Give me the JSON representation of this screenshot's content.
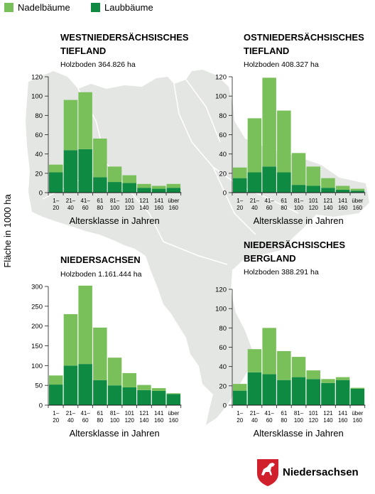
{
  "colors": {
    "nadel": "#79c05a",
    "laub": "#0f8a43",
    "map": "#e4e6e4",
    "map_border": "#ffffff",
    "axis": "#1a1a1a",
    "logo_red": "#d0202c"
  },
  "legend": [
    {
      "label": "Nadelbäume",
      "color": "#79c05a"
    },
    {
      "label": "Laubbäume",
      "color": "#0f8a43"
    }
  ],
  "y_axis_label": "Fläche in 1000 ha",
  "logo_text": "Niedersachsen",
  "chart_data": [
    {
      "type": "bar",
      "stacked": true,
      "title": "WESTNIEDERSÄCHSISCHES TIEFLAND",
      "subtitle": "Holzboden 364.826 ha",
      "xlabel": "Altersklasse in Jahren",
      "ylim": [
        0,
        120
      ],
      "yticks": [
        0,
        20,
        40,
        60,
        80,
        100,
        120
      ],
      "categories": [
        [
          "1–",
          "20"
        ],
        [
          "21–",
          "40"
        ],
        [
          "41–",
          "60"
        ],
        [
          "61",
          "80"
        ],
        [
          "81–",
          "100"
        ],
        [
          "101",
          "120"
        ],
        [
          "121",
          "140"
        ],
        [
          "141",
          "160"
        ],
        [
          "über",
          "160"
        ]
      ],
      "series": [
        {
          "name": "Laubbäume",
          "values": [
            21,
            44,
            45,
            16,
            11,
            10,
            5,
            4,
            5
          ]
        },
        {
          "name": "Nadelbäume",
          "values": [
            8,
            52,
            59,
            40,
            16,
            8,
            4,
            3,
            4
          ]
        }
      ]
    },
    {
      "type": "bar",
      "stacked": true,
      "title": "OSTNIEDERSÄCHSISCHES TIEFLAND",
      "subtitle": "Holzboden 408.327 ha",
      "xlabel": "Altersklasse in Jahren",
      "ylim": [
        0,
        120
      ],
      "yticks": [
        0,
        20,
        40,
        60,
        80,
        100,
        120
      ],
      "categories": [
        [
          "1–",
          "20"
        ],
        [
          "21–",
          "40"
        ],
        [
          "41–",
          "60"
        ],
        [
          "61",
          "80"
        ],
        [
          "81–",
          "100"
        ],
        [
          "101",
          "120"
        ],
        [
          "121",
          "140"
        ],
        [
          "141",
          "160"
        ],
        [
          "über",
          "160"
        ]
      ],
      "series": [
        {
          "name": "Laubbäume",
          "values": [
            15,
            21,
            27,
            21,
            8,
            7,
            5,
            3,
            2
          ]
        },
        {
          "name": "Nadelbäume",
          "values": [
            11,
            56,
            92,
            64,
            33,
            20,
            10,
            4,
            2
          ]
        }
      ]
    },
    {
      "type": "bar",
      "stacked": true,
      "title": "NIEDERSACHSEN",
      "subtitle": "Holzboden 1.161.444 ha",
      "xlabel": "Altersklasse in Jahren",
      "ylim": [
        0,
        300
      ],
      "yticks": [
        0,
        50,
        100,
        150,
        200,
        250,
        300
      ],
      "categories": [
        [
          "1–",
          "20"
        ],
        [
          "21–",
          "40"
        ],
        [
          "41–",
          "60"
        ],
        [
          "61",
          "80"
        ],
        [
          "81–",
          "100"
        ],
        [
          "101",
          "120"
        ],
        [
          "121",
          "140"
        ],
        [
          "141",
          "160"
        ],
        [
          "über",
          "160"
        ]
      ],
      "series": [
        {
          "name": "Laubbäume",
          "values": [
            52,
            100,
            104,
            63,
            50,
            45,
            38,
            36,
            28
          ]
        },
        {
          "name": "Nadelbäume",
          "values": [
            23,
            130,
            198,
            133,
            70,
            36,
            13,
            7,
            2
          ]
        }
      ]
    },
    {
      "type": "bar",
      "stacked": true,
      "title": "NIEDERSÄCHSISCHES BERGLAND",
      "subtitle": "Holzboden 388.291 ha",
      "xlabel": "Altersklasse in Jahren",
      "ylim": [
        0,
        120
      ],
      "yticks": [
        0,
        20,
        40,
        60,
        80,
        100,
        120
      ],
      "categories": [
        [
          "1–",
          "20"
        ],
        [
          "21–",
          "40"
        ],
        [
          "41–",
          "60"
        ],
        [
          "61",
          "80"
        ],
        [
          "81–",
          "100"
        ],
        [
          "101",
          "120"
        ],
        [
          "121",
          "140"
        ],
        [
          "141",
          "160"
        ],
        [
          "über",
          "160"
        ]
      ],
      "series": [
        {
          "name": "Laubbäume",
          "values": [
            15,
            34,
            32,
            26,
            29,
            27,
            23,
            26,
            17
          ]
        },
        {
          "name": "Nadelbäume",
          "values": [
            7,
            24,
            48,
            30,
            21,
            9,
            4,
            3,
            1
          ]
        }
      ]
    }
  ]
}
